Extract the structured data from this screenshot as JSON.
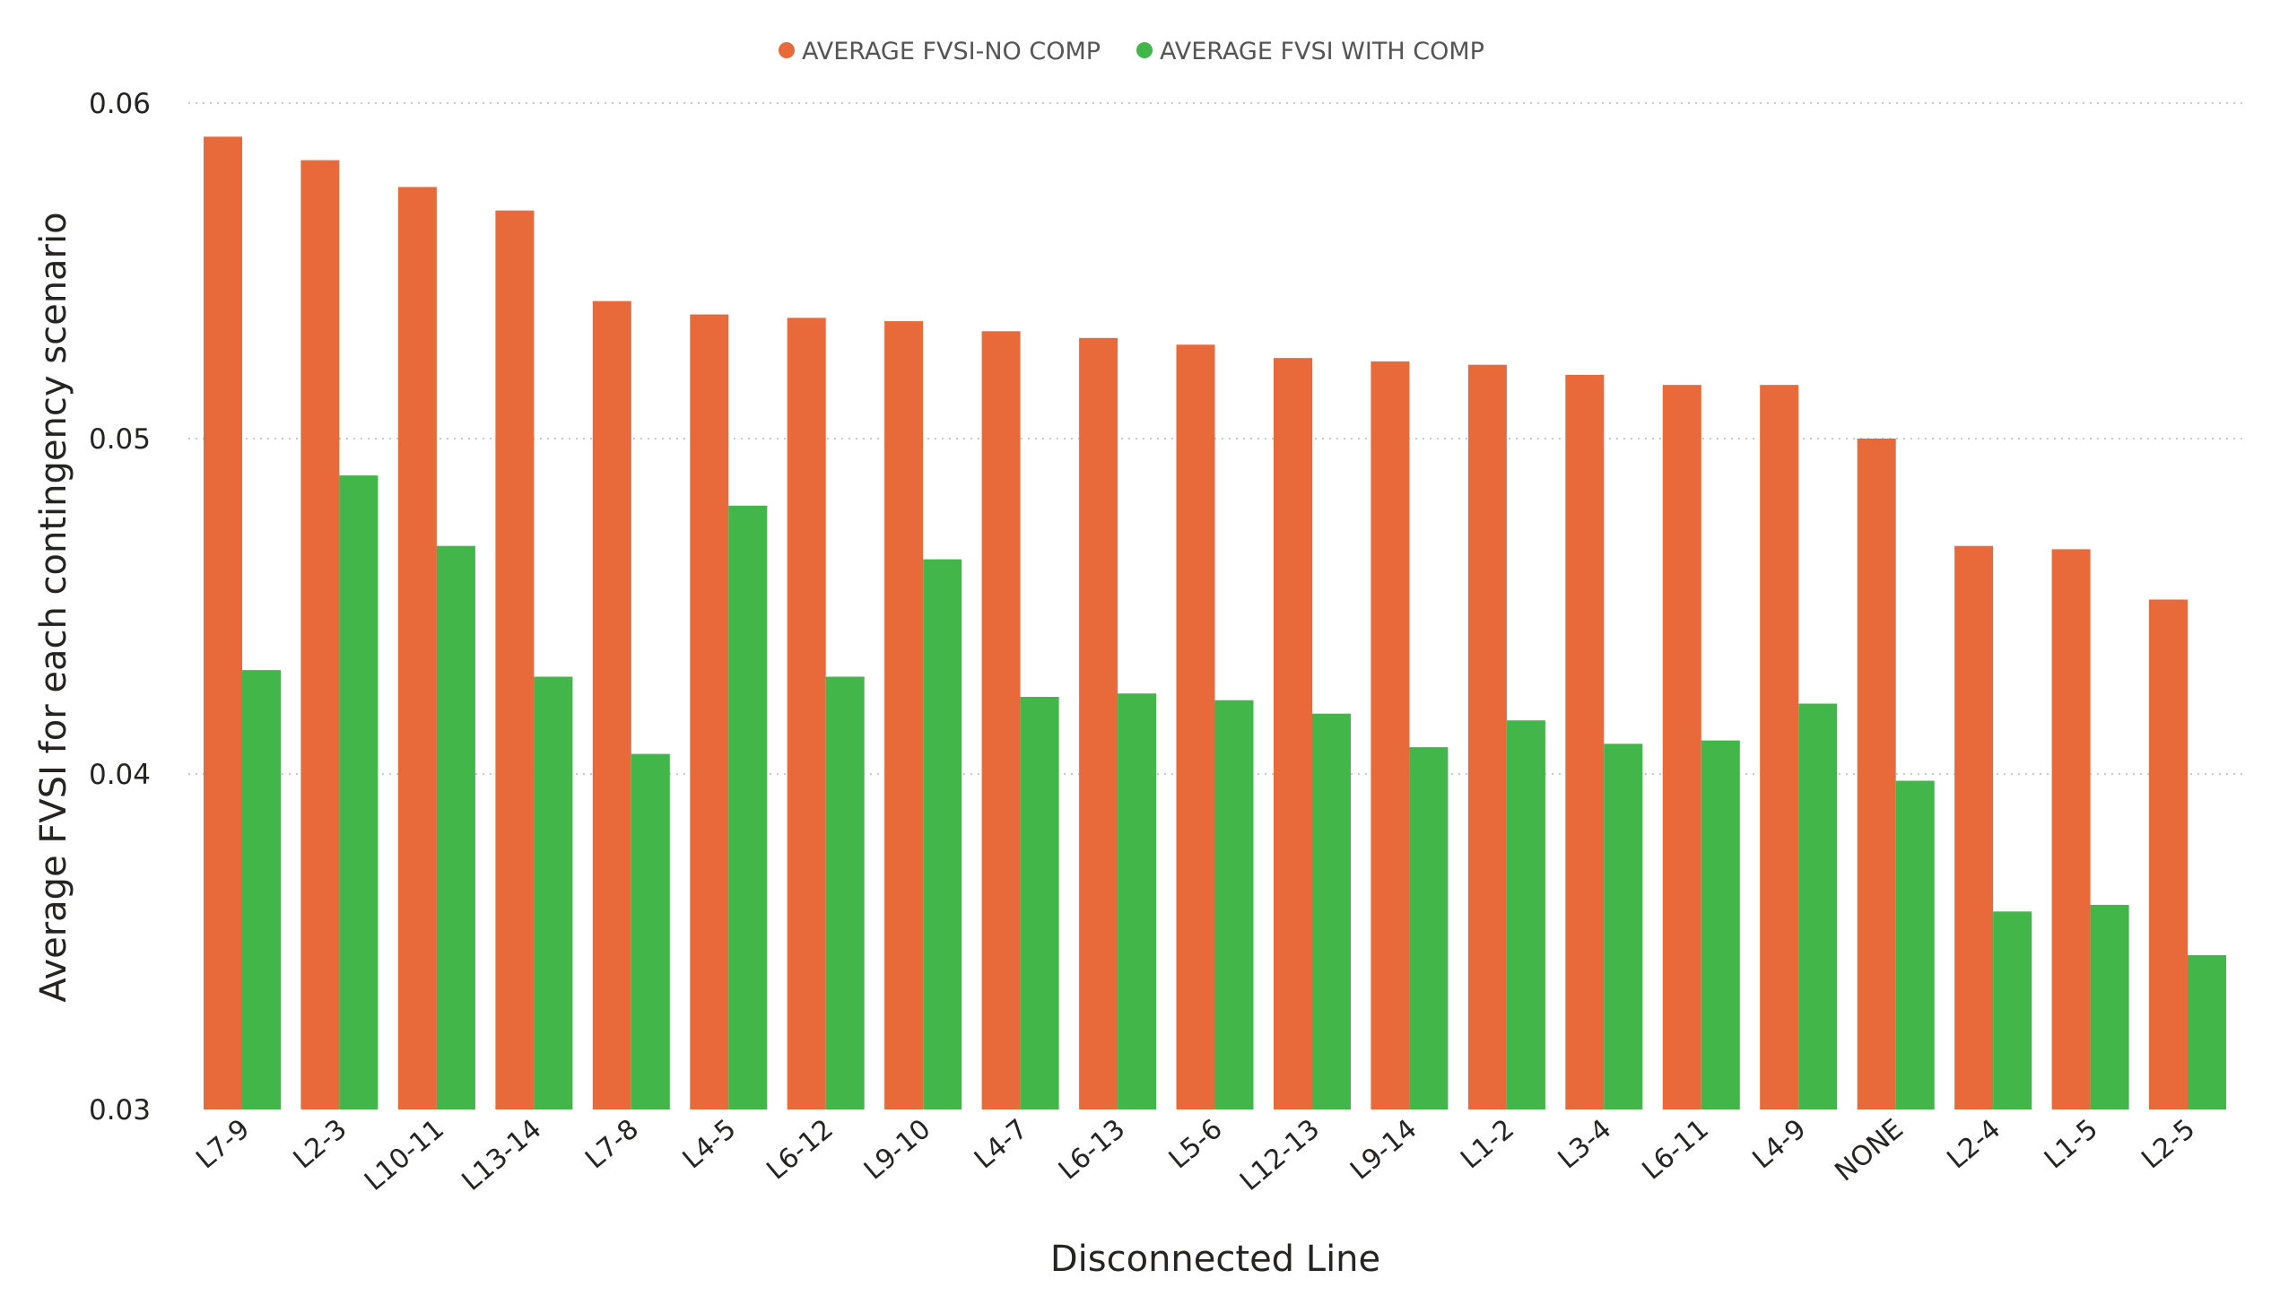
{
  "chart_data": {
    "type": "bar",
    "title": "",
    "xlabel": "Disconnected Line",
    "ylabel": "Average FVSI for each contingency scenario",
    "ylim": [
      0.03,
      0.06
    ],
    "yticks": [
      "0.03",
      "0.04",
      "0.05",
      "0.06"
    ],
    "grid": true,
    "legend_position": "top-center",
    "categories": [
      "L7-9",
      "L2-3",
      "L10-11",
      "L13-14",
      "L7-8",
      "L4-5",
      "L6-12",
      "L9-10",
      "L4-7",
      "L6-13",
      "L5-6",
      "L12-13",
      "L9-14",
      "L1-2",
      "L3-4",
      "L6-11",
      "L4-9",
      "NONE",
      "L2-4",
      "L1-5",
      "L2-5"
    ],
    "series": [
      {
        "name": "AVERAGE FVSI-NO COMP",
        "color": "#E8693A",
        "values": [
          0.059,
          0.0583,
          0.0575,
          0.0568,
          0.0541,
          0.0537,
          0.0536,
          0.0535,
          0.0532,
          0.053,
          0.0528,
          0.0524,
          0.0523,
          0.0522,
          0.0519,
          0.0516,
          0.0516,
          0.05,
          0.0468,
          0.0467,
          0.0452
        ]
      },
      {
        "name": "AVERAGE FVSI WITH COMP",
        "color": "#43B649",
        "values": [
          0.0431,
          0.0489,
          0.0468,
          0.0429,
          0.0406,
          0.048,
          0.0429,
          0.0464,
          0.0423,
          0.0424,
          0.0422,
          0.0418,
          0.0408,
          0.0416,
          0.0409,
          0.041,
          0.0421,
          0.0398,
          0.0359,
          0.0361,
          0.0346
        ]
      }
    ]
  }
}
